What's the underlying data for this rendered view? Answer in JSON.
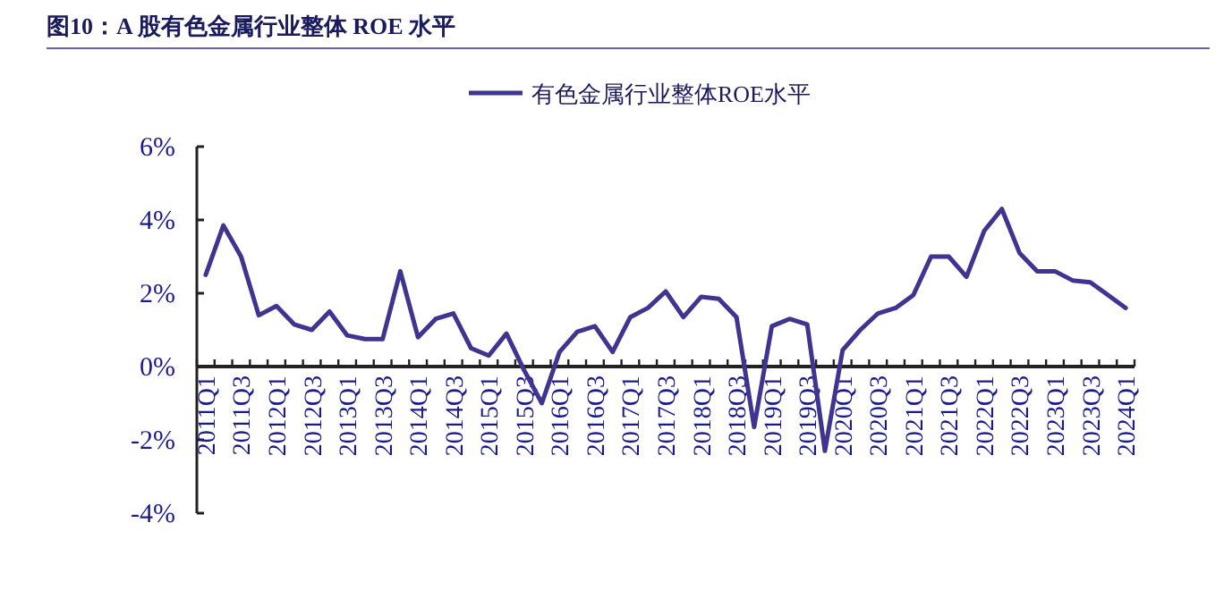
{
  "chart_data": {
    "type": "line",
    "title": "图10：A 股有色金属行业整体 ROE 水平",
    "categories": [
      "2011Q1",
      null,
      "2011Q3",
      null,
      "2012Q1",
      null,
      "2012Q3",
      null,
      "2013Q1",
      null,
      "2013Q3",
      null,
      "2014Q1",
      null,
      "2014Q3",
      null,
      "2015Q1",
      null,
      "2015Q3",
      null,
      "2016Q1",
      null,
      "2016Q3",
      null,
      "2017Q1",
      null,
      "2017Q3",
      null,
      "2018Q1",
      null,
      "2018Q3",
      null,
      "2019Q1",
      null,
      "2019Q3",
      null,
      "2020Q1",
      null,
      "2020Q3",
      null,
      "2021Q1",
      null,
      "2021Q3",
      null,
      "2022Q1",
      null,
      "2022Q3",
      null,
      "2023Q1",
      null,
      "2023Q3",
      null,
      "2024Q1"
    ],
    "series": [
      {
        "name": "有色金属行业整体ROE水平",
        "color": "#3f3590",
        "values": [
          2.5,
          3.85,
          3.0,
          1.4,
          1.65,
          1.15,
          1.0,
          1.5,
          0.85,
          0.75,
          0.75,
          2.6,
          0.8,
          1.3,
          1.45,
          0.5,
          0.3,
          0.9,
          -0.1,
          -1.0,
          0.4,
          0.95,
          1.1,
          0.4,
          1.35,
          1.6,
          2.05,
          1.35,
          1.9,
          1.85,
          1.35,
          -1.65,
          1.1,
          1.3,
          1.15,
          -2.3,
          0.45,
          1.0,
          1.45,
          1.6,
          1.95,
          3.0,
          3.0,
          2.45,
          3.7,
          4.3,
          3.1,
          2.6,
          2.6,
          2.35,
          2.3,
          1.95,
          1.6
        ]
      }
    ],
    "ylim": [
      -4,
      6
    ],
    "yticks": [
      {
        "value": -4,
        "label": "-4%"
      },
      {
        "value": -2,
        "label": "-2%"
      },
      {
        "value": 0,
        "label": "0%"
      },
      {
        "value": 2,
        "label": "2%"
      },
      {
        "value": 4,
        "label": "4%"
      },
      {
        "value": 6,
        "label": "6%"
      }
    ],
    "legend": "top",
    "grid": false
  }
}
